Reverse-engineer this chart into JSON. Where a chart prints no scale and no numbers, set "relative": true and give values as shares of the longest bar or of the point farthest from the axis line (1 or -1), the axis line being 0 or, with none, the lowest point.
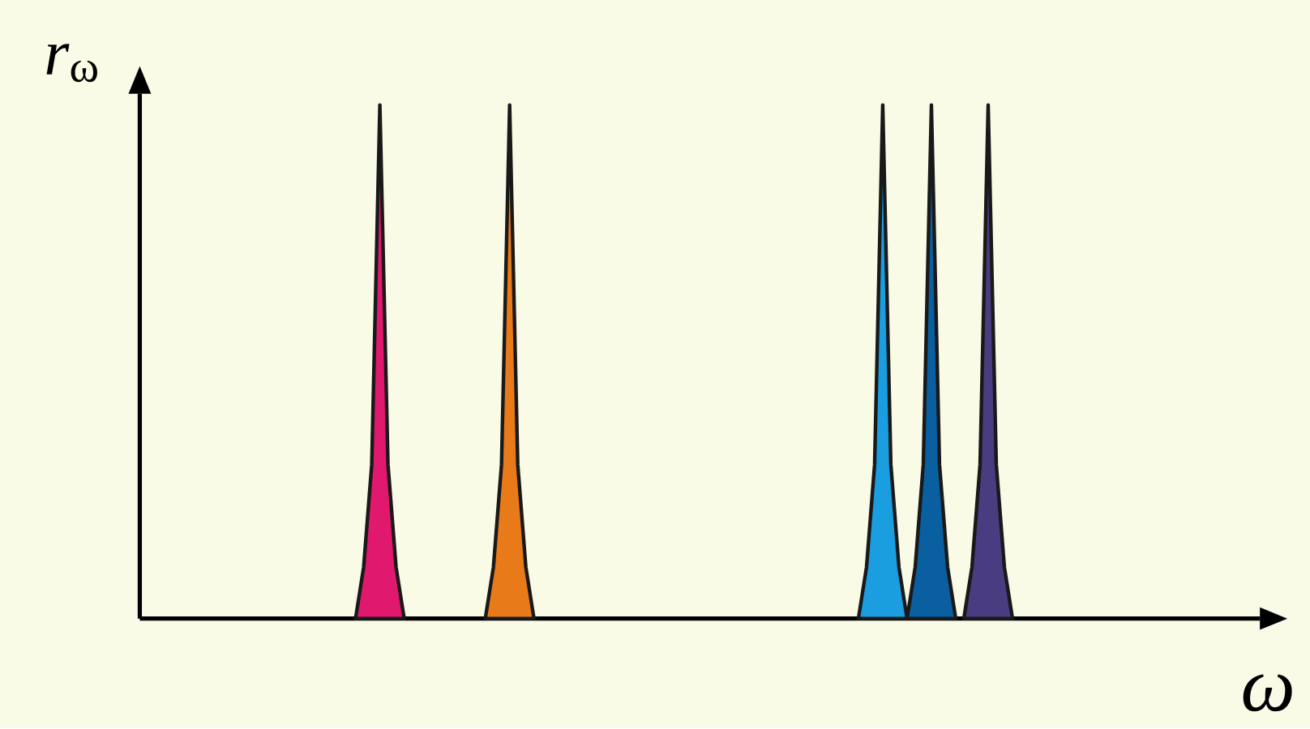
{
  "chart_data": {
    "type": "area",
    "relative": true,
    "xlabel": "*ω*",
    "ylabel": "*r*$_{ω}$",
    "categories": [
      null,
      null,
      null,
      null,
      null,
      null,
      null,
      null,
      null,
      null,
      null,
      null,
      null,
      null,
      null,
      null,
      null,
      null,
      null,
      null,
      null,
      null,
      null,
      null,
      null,
      null,
      null,
      null,
      null,
      null,
      null,
      null,
      null,
      null,
      null,
      null,
      null,
      null,
      null,
      null,
      null,
      null,
      null,
      null,
      null,
      null,
      null,
      null,
      null,
      null,
      null,
      null,
      null,
      null,
      null,
      null,
      null,
      null,
      null,
      null,
      null,
      null,
      null,
      null,
      null,
      null,
      null,
      null,
      null,
      null,
      null,
      null,
      null,
      null,
      null,
      null,
      null,
      null,
      null,
      null,
      null,
      null,
      null,
      null,
      null,
      null,
      null,
      null,
      null,
      null,
      null,
      null,
      null,
      null,
      null,
      null,
      null,
      null,
      null,
      null,
      null,
      null,
      null,
      null,
      null,
      null,
      null,
      null,
      null,
      null,
      null,
      null,
      null,
      null,
      null,
      null,
      null,
      null,
      null,
      null,
      null,
      null,
      null,
      null,
      null,
      null,
      null,
      null,
      null,
      null,
      null,
      null,
      null,
      null,
      null,
      null
    ],
    "series": [
      {
        "color": "#e0186e",
        "values": [
          null,
          null,
          null,
          null,
          null,
          null,
          null,
          null,
          null,
          null,
          null,
          null,
          null,
          null,
          null,
          null,
          null,
          null,
          null,
          null,
          null,
          null,
          null,
          null,
          null,
          null,
          0,
          0.1,
          0.3,
          1,
          0.3,
          0.1,
          0,
          null,
          null,
          null,
          null,
          null,
          null,
          null,
          null,
          null,
          null,
          null,
          null,
          null,
          null,
          null,
          null,
          null,
          null,
          null,
          null,
          null,
          null,
          null,
          null,
          null,
          null,
          null,
          null,
          null,
          null,
          null,
          null,
          null,
          null,
          null,
          null,
          null,
          null,
          null,
          null,
          null,
          null,
          null,
          null,
          null,
          null,
          null,
          null,
          null,
          null,
          null,
          null,
          null,
          null,
          null,
          null,
          null,
          null,
          null,
          null,
          null,
          null,
          null,
          null,
          null,
          null,
          null,
          null,
          null,
          null,
          null,
          null,
          null,
          null,
          null,
          null,
          null,
          null,
          null,
          null,
          null,
          null,
          null,
          null,
          null,
          null,
          null,
          null,
          null,
          null,
          null,
          null,
          null,
          null,
          null,
          null,
          null,
          null,
          null,
          null,
          null,
          null,
          null
        ]
      },
      {
        "color": "#e87a1a",
        "values": [
          null,
          null,
          null,
          null,
          null,
          null,
          null,
          null,
          null,
          null,
          null,
          null,
          null,
          null,
          null,
          null,
          null,
          null,
          null,
          null,
          null,
          null,
          null,
          null,
          null,
          null,
          null,
          null,
          null,
          null,
          null,
          null,
          null,
          null,
          null,
          null,
          null,
          null,
          null,
          null,
          null,
          null,
          0,
          0.1,
          0.3,
          1,
          0.3,
          0.1,
          0,
          null,
          null,
          null,
          null,
          null,
          null,
          null,
          null,
          null,
          null,
          null,
          null,
          null,
          null,
          null,
          null,
          null,
          null,
          null,
          null,
          null,
          null,
          null,
          null,
          null,
          null,
          null,
          null,
          null,
          null,
          null,
          null,
          null,
          null,
          null,
          null,
          null,
          null,
          null,
          null,
          null,
          null,
          null,
          null,
          null,
          null,
          null,
          null,
          null,
          null,
          null,
          null,
          null,
          null,
          null,
          null,
          null,
          null,
          null,
          null,
          null,
          null,
          null,
          null,
          null,
          null,
          null,
          null,
          null,
          null,
          null,
          null,
          null,
          null,
          null,
          null,
          null,
          null,
          null,
          null,
          null,
          null,
          null,
          null,
          null,
          null,
          null
        ]
      },
      {
        "color": "#1a9ee0",
        "values": [
          null,
          null,
          null,
          null,
          null,
          null,
          null,
          null,
          null,
          null,
          null,
          null,
          null,
          null,
          null,
          null,
          null,
          null,
          null,
          null,
          null,
          null,
          null,
          null,
          null,
          null,
          null,
          null,
          null,
          null,
          null,
          null,
          null,
          null,
          null,
          null,
          null,
          null,
          null,
          null,
          null,
          null,
          null,
          null,
          null,
          null,
          null,
          null,
          null,
          null,
          null,
          null,
          null,
          null,
          null,
          null,
          null,
          null,
          null,
          null,
          null,
          null,
          null,
          null,
          null,
          null,
          null,
          null,
          null,
          null,
          null,
          null,
          null,
          null,
          null,
          null,
          null,
          null,
          null,
          null,
          null,
          null,
          null,
          null,
          null,
          null,
          null,
          null,
          0,
          0.1,
          0.3,
          1,
          0.3,
          0.1,
          0,
          null,
          null,
          null,
          null,
          null,
          null,
          null,
          null,
          null,
          null,
          null,
          null,
          null,
          null,
          null,
          null,
          null,
          null,
          null,
          null,
          null,
          null,
          null,
          null,
          null,
          null,
          null,
          null,
          null,
          null,
          null,
          null,
          null,
          null,
          null,
          null,
          null,
          null,
          null,
          null,
          null
        ]
      },
      {
        "color": "#0a5fa0",
        "values": [
          null,
          null,
          null,
          null,
          null,
          null,
          null,
          null,
          null,
          null,
          null,
          null,
          null,
          null,
          null,
          null,
          null,
          null,
          null,
          null,
          null,
          null,
          null,
          null,
          null,
          null,
          null,
          null,
          null,
          null,
          null,
          null,
          null,
          null,
          null,
          null,
          null,
          null,
          null,
          null,
          null,
          null,
          null,
          null,
          null,
          null,
          null,
          null,
          null,
          null,
          null,
          null,
          null,
          null,
          null,
          null,
          null,
          null,
          null,
          null,
          null,
          null,
          null,
          null,
          null,
          null,
          null,
          null,
          null,
          null,
          null,
          null,
          null,
          null,
          null,
          null,
          null,
          null,
          null,
          null,
          null,
          null,
          null,
          null,
          null,
          null,
          null,
          null,
          null,
          null,
          null,
          null,
          null,
          null,
          0,
          0.1,
          0.3,
          1,
          0.3,
          0.1,
          0,
          null,
          null,
          null,
          null,
          null,
          null,
          null,
          null,
          null,
          null,
          null,
          null,
          null,
          null,
          null,
          null,
          null,
          null,
          null,
          null,
          null,
          null,
          null,
          null,
          null,
          null,
          null,
          null,
          null,
          null,
          null,
          null,
          null,
          null,
          null
        ]
      },
      {
        "color": "#4a3c80",
        "values": [
          null,
          null,
          null,
          null,
          null,
          null,
          null,
          null,
          null,
          null,
          null,
          null,
          null,
          null,
          null,
          null,
          null,
          null,
          null,
          null,
          null,
          null,
          null,
          null,
          null,
          null,
          null,
          null,
          null,
          null,
          null,
          null,
          null,
          null,
          null,
          null,
          null,
          null,
          null,
          null,
          null,
          null,
          null,
          null,
          null,
          null,
          null,
          null,
          null,
          null,
          null,
          null,
          null,
          null,
          null,
          null,
          null,
          null,
          null,
          null,
          null,
          null,
          null,
          null,
          null,
          null,
          null,
          null,
          null,
          null,
          null,
          null,
          null,
          null,
          null,
          null,
          null,
          null,
          null,
          null,
          null,
          null,
          null,
          null,
          null,
          null,
          null,
          null,
          null,
          null,
          null,
          null,
          null,
          null,
          null,
          null,
          null,
          null,
          null,
          null,
          null,
          0,
          0.1,
          0.3,
          1,
          0.3,
          0.1,
          0,
          null,
          null,
          null,
          null,
          null,
          null,
          null,
          null,
          null,
          null,
          null,
          null,
          null,
          null,
          null,
          null,
          null,
          null,
          null,
          null,
          null,
          null,
          null,
          null,
          null,
          null,
          null,
          null
        ]
      }
    ]
  }
}
